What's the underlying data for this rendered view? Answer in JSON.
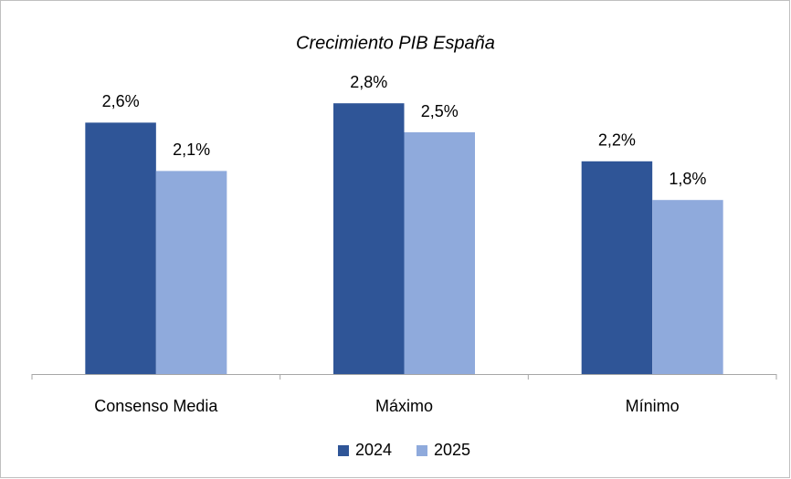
{
  "chart_data": {
    "type": "bar",
    "title": "Crecimiento PIB España",
    "categories": [
      "Consenso Media",
      "Máximo",
      "Mínimo"
    ],
    "series": [
      {
        "name": "2024",
        "color": "#2f5597",
        "values": [
          2.6,
          2.8,
          2.2
        ],
        "value_labels": [
          "2,6%",
          "2,8%",
          "2,2%"
        ]
      },
      {
        "name": "2025",
        "color": "#8faadc",
        "values": [
          2.1,
          2.5,
          1.8
        ],
        "value_labels": [
          "2,1%",
          "2,5%",
          "1,8%"
        ]
      }
    ],
    "legend": "bottom"
  }
}
